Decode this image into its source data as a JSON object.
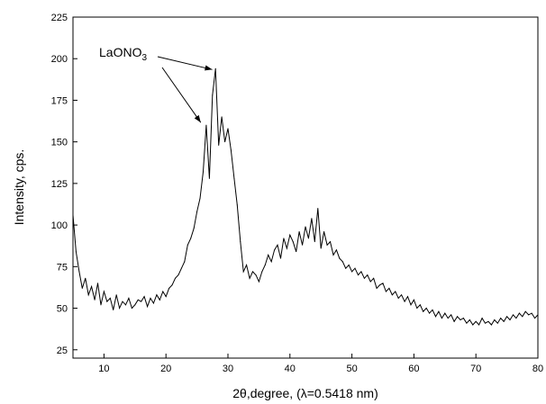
{
  "chart_data": {
    "type": "line",
    "title": "",
    "xlabel": "2θ,degree, (λ=0.5418 nm)",
    "ylabel": "Intensity, cps.",
    "xlim": [
      5,
      80
    ],
    "ylim": [
      20,
      225
    ],
    "xticks": [
      10,
      20,
      30,
      40,
      50,
      60,
      70,
      80
    ],
    "yticks": [
      25,
      50,
      75,
      100,
      125,
      150,
      175,
      200,
      225
    ],
    "grid": false,
    "legend": "none",
    "line_color": "#000000",
    "annotation": {
      "text_main": "LaONO",
      "text_sub": "3",
      "arrow_targets": [
        {
          "x": 27.9,
          "y": 194
        },
        {
          "x": 25.9,
          "y": 160
        }
      ],
      "text_anchor": {
        "x": 9.5,
        "y": 199
      }
    },
    "series": [
      {
        "x": [
          5,
          5.5,
          6,
          6.5,
          7,
          7.5,
          8,
          8.5,
          9,
          9.5,
          10,
          10.5,
          11,
          11.5,
          12,
          12.5,
          13,
          13.5,
          14,
          14.5,
          15,
          15.5,
          16,
          16.5,
          17,
          17.5,
          18,
          18.5,
          19,
          19.5,
          20,
          20.5,
          21,
          21.5,
          22,
          22.5,
          23,
          23.5,
          24,
          24.5,
          25,
          25.5,
          26,
          26.5,
          27,
          27.5,
          28,
          28.5,
          29,
          29.5,
          30,
          30.5,
          31,
          31.5,
          32,
          32.5,
          33,
          33.5,
          34,
          34.5,
          35,
          35.5,
          36,
          36.5,
          37,
          37.5,
          38,
          38.5,
          39,
          39.5,
          40,
          40.5,
          41,
          41.5,
          42,
          42.5,
          43,
          43.5,
          44,
          44.5,
          45,
          45.5,
          46,
          46.5,
          47,
          47.5,
          48,
          48.5,
          49,
          49.5,
          50,
          50.5,
          51,
          51.5,
          52,
          52.5,
          53,
          53.5,
          54,
          54.5,
          55,
          55.5,
          56,
          56.5,
          57,
          57.5,
          58,
          58.5,
          59,
          59.5,
          60,
          60.5,
          61,
          61.5,
          62,
          62.5,
          63,
          63.5,
          64,
          64.5,
          65,
          65.5,
          66,
          66.5,
          67,
          67.5,
          68,
          68.5,
          69,
          69.5,
          70,
          70.5,
          71,
          71.5,
          72,
          72.5,
          73,
          73.5,
          74,
          74.5,
          75,
          75.5,
          76,
          76.5,
          77,
          77.5,
          78,
          78.5,
          79,
          79.5,
          80
        ],
        "y": [
          106,
          84,
          72,
          62,
          68,
          58,
          63,
          55,
          65,
          52,
          60,
          54,
          56,
          49,
          58,
          50,
          54,
          52,
          56,
          50,
          52,
          55,
          54,
          57,
          51,
          56,
          53,
          58,
          55,
          60,
          57,
          62,
          64,
          68,
          70,
          74,
          78,
          88,
          92,
          98,
          108,
          116,
          132,
          160,
          128,
          178,
          194,
          148,
          165,
          150,
          158,
          145,
          128,
          112,
          90,
          72,
          76,
          68,
          72,
          70,
          66,
          72,
          76,
          82,
          78,
          85,
          88,
          80,
          92,
          86,
          94,
          90,
          84,
          96,
          88,
          99,
          92,
          104,
          90,
          110,
          86,
          96,
          88,
          90,
          82,
          85,
          80,
          78,
          74,
          76,
          72,
          74,
          70,
          72,
          68,
          70,
          66,
          68,
          62,
          64,
          65,
          60,
          62,
          58,
          60,
          56,
          58,
          54,
          57,
          52,
          55,
          50,
          52,
          48,
          50,
          47,
          49,
          45,
          48,
          44,
          47,
          44,
          46,
          42,
          45,
          43,
          44,
          41,
          43,
          40,
          42,
          40,
          44,
          41,
          42,
          40,
          43,
          41,
          44,
          42,
          45,
          43,
          46,
          44,
          47,
          45,
          48,
          46,
          47,
          44,
          46
        ]
      }
    ]
  }
}
